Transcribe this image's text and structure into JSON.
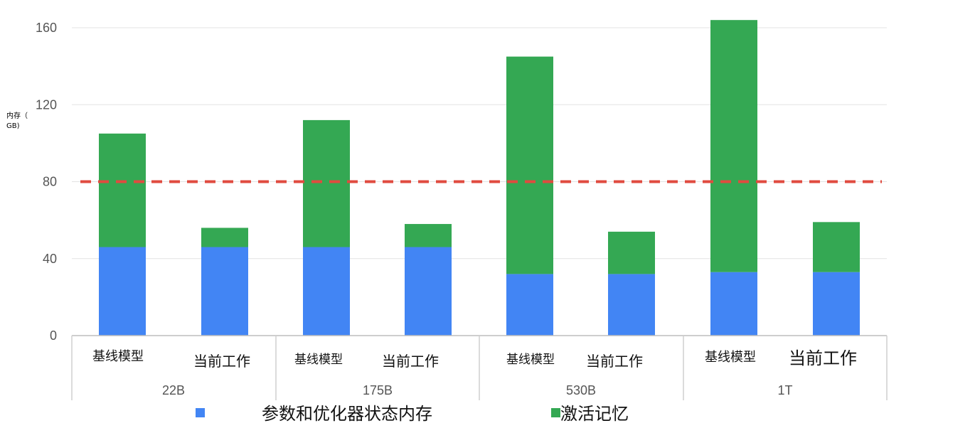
{
  "chart_data": {
    "type": "bar",
    "stacked": true,
    "ylabel_line1": "内存（",
    "ylabel_line2": "GB)",
    "ylim": [
      0,
      165
    ],
    "yticks": [
      0,
      40,
      80,
      120,
      160
    ],
    "grid": true,
    "reference_line": {
      "y": 80,
      "color": "#e04b3f",
      "style": "dashed"
    },
    "groups": [
      "22B",
      "175B",
      "530B",
      "1T"
    ],
    "categories": [
      "基线模型",
      "当前工作",
      "基线模型",
      "当前工作",
      "基线模型",
      "当前工作",
      "基线模型",
      "当前工作"
    ],
    "series": [
      {
        "name": "参数和优化器状态内存",
        "color": "#4285f4",
        "values": [
          46,
          46,
          46,
          46,
          32,
          32,
          33,
          33
        ]
      },
      {
        "name": "激活记忆",
        "color": "#34a853",
        "values": [
          59,
          10,
          66,
          12,
          113,
          22,
          131,
          26
        ]
      }
    ],
    "legend_position": "bottom"
  }
}
